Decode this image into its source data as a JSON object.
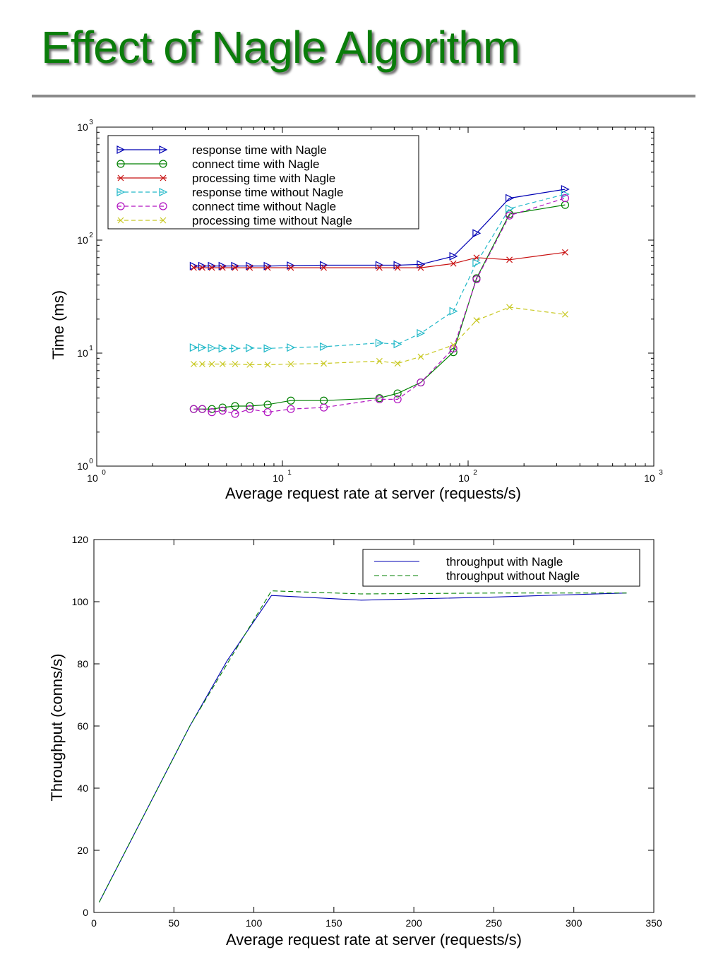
{
  "slide": {
    "title": "Effect of Nagle Algorithm"
  },
  "colors": {
    "title": "#0a7d0a",
    "blue": "#0000b4",
    "green": "#008000",
    "red": "#c81010",
    "cyan": "#20b8c8",
    "magenta": "#b010c0",
    "yellow": "#c8c820"
  },
  "chart_data": [
    {
      "type": "line",
      "xscale": "log",
      "yscale": "log",
      "xlim": [
        1,
        1000
      ],
      "ylim": [
        1,
        1000
      ],
      "xlabel": "Average request rate at server (requests/s)",
      "ylabel": "Time (ms)",
      "xticks": [
        {
          "v": 1,
          "b": "10",
          "e": "0"
        },
        {
          "v": 10,
          "b": "10",
          "e": "1"
        },
        {
          "v": 100,
          "b": "10",
          "e": "2"
        },
        {
          "v": 1000,
          "b": "10",
          "e": "3"
        }
      ],
      "yticks": [
        {
          "v": 1,
          "b": "10",
          "e": "0"
        },
        {
          "v": 10,
          "b": "10",
          "e": "1"
        },
        {
          "v": 100,
          "b": "10",
          "e": "2"
        },
        {
          "v": 1000,
          "b": "10",
          "e": "3"
        }
      ],
      "legend_position": "top-left",
      "series": [
        {
          "name": "response time with Nagle",
          "color": "#0000b4",
          "dash": "solid",
          "marker": "triangle-right",
          "x": [
            3.33,
            3.7,
            4.17,
            4.76,
            5.56,
            6.67,
            8.33,
            11.1,
            16.7,
            33.3,
            41.7,
            55.6,
            83.3,
            111,
            167,
            333
          ],
          "y": [
            59,
            59,
            59,
            59,
            59,
            59,
            59,
            59.5,
            60,
            60,
            60,
            61,
            72,
            115,
            235,
            282
          ]
        },
        {
          "name": "connect time with Nagle",
          "color": "#008000",
          "dash": "solid",
          "marker": "circle",
          "x": [
            3.33,
            3.7,
            4.17,
            4.76,
            5.56,
            6.67,
            8.33,
            11.1,
            16.7,
            33.3,
            41.7,
            55.6,
            83.3,
            111,
            167,
            333
          ],
          "y": [
            3.2,
            3.2,
            3.2,
            3.3,
            3.4,
            3.4,
            3.5,
            3.8,
            3.8,
            4.0,
            4.4,
            5.5,
            10.2,
            46,
            170,
            205
          ]
        },
        {
          "name": "processing time with Nagle",
          "color": "#c81010",
          "dash": "solid",
          "marker": "x",
          "x": [
            3.33,
            3.7,
            4.17,
            4.76,
            5.56,
            6.67,
            8.33,
            11.1,
            16.7,
            33.3,
            41.7,
            55.6,
            83.3,
            111,
            167,
            333
          ],
          "y": [
            57,
            57,
            57,
            57,
            57,
            57,
            57,
            57,
            57,
            57,
            57,
            57,
            62,
            70,
            67,
            78
          ]
        },
        {
          "name": "response time without Nagle",
          "color": "#20b8c8",
          "dash": "dashed",
          "marker": "triangle-right",
          "x": [
            3.33,
            3.7,
            4.17,
            4.76,
            5.56,
            6.67,
            8.33,
            11.1,
            16.7,
            33.3,
            41.7,
            55.6,
            83.3,
            111,
            167,
            333
          ],
          "y": [
            11.2,
            11.2,
            11.1,
            11.0,
            11.0,
            11.1,
            11.0,
            11.2,
            11.4,
            12.3,
            12.0,
            15.0,
            23.5,
            63,
            190,
            255
          ]
        },
        {
          "name": "connect time without Nagle",
          "color": "#b010c0",
          "dash": "dashed",
          "marker": "circle",
          "x": [
            3.33,
            3.7,
            4.17,
            4.76,
            5.56,
            6.67,
            8.33,
            11.1,
            16.7,
            33.3,
            41.7,
            55.6,
            83.3,
            111,
            167,
            333
          ],
          "y": [
            3.2,
            3.2,
            3.0,
            3.1,
            2.9,
            3.2,
            3.0,
            3.2,
            3.3,
            3.9,
            3.9,
            5.5,
            11.0,
            45,
            165,
            235
          ]
        },
        {
          "name": "processing time without Nagle",
          "color": "#c8c820",
          "dash": "dashed",
          "marker": "x",
          "x": [
            3.33,
            3.7,
            4.17,
            4.76,
            5.56,
            6.67,
            8.33,
            11.1,
            16.7,
            33.3,
            41.7,
            55.6,
            83.3,
            111,
            167,
            333
          ],
          "y": [
            8.0,
            8.0,
            8.0,
            8.0,
            8.0,
            7.9,
            7.9,
            8.0,
            8.1,
            8.5,
            8.1,
            9.3,
            11.8,
            19.5,
            25.5,
            22.0
          ]
        }
      ]
    },
    {
      "type": "line",
      "xlim": [
        0,
        350
      ],
      "ylim": [
        0,
        120
      ],
      "xlabel": "Average request rate at server (requests/s)",
      "ylabel": "Throughput (conns/s)",
      "xticks": [
        0,
        50,
        100,
        150,
        200,
        250,
        300,
        350
      ],
      "yticks": [
        0,
        20,
        40,
        60,
        80,
        100,
        120
      ],
      "legend_position": "top-right",
      "series": [
        {
          "name": "throughput with Nagle",
          "color": "#0000b4",
          "dash": "solid",
          "x": [
            3.33,
            20,
            40,
            60,
            83.3,
            111,
            167,
            250,
            333
          ],
          "y": [
            3.3,
            20,
            40,
            60,
            81,
            102,
            100.5,
            101.5,
            102.8
          ]
        },
        {
          "name": "throughput without Nagle",
          "color": "#008000",
          "dash": "dashed",
          "x": [
            3.33,
            20,
            40,
            60,
            83.3,
            111,
            167,
            250,
            333
          ],
          "y": [
            3.3,
            20,
            40,
            60,
            80,
            103.5,
            102.5,
            102.8,
            102.8
          ]
        }
      ]
    }
  ]
}
